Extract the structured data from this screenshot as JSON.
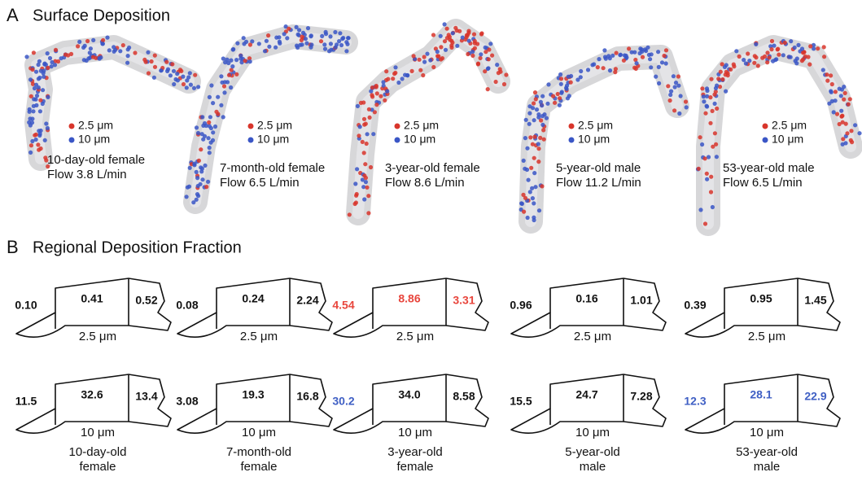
{
  "panel_a": {
    "label": "A",
    "title": "Surface Deposition",
    "dot_colors": [
      "#d8352b",
      "#3a56c6"
    ],
    "subjects": [
      {
        "legend": [
          "2.5 μm",
          "10 μm"
        ],
        "caption": [
          "10-day-old female",
          "Flow 3.8 L/min"
        ]
      },
      {
        "legend": [
          "2.5 μm",
          "10 μm"
        ],
        "caption": [
          "7-month-old female",
          "Flow 6.5 L/min"
        ]
      },
      {
        "legend": [
          "2.5 μm",
          "10 μm"
        ],
        "caption": [
          "3-year-old female",
          "Flow 8.6 L/min"
        ]
      },
      {
        "legend": [
          "2.5 μm",
          "10 μm"
        ],
        "caption": [
          "5-year-old male",
          "Flow 11.2 L/min"
        ]
      },
      {
        "legend": [
          "2.5 μm",
          "10 μm"
        ],
        "caption": [
          "53-year-old male",
          "Flow 6.5 L/min"
        ]
      }
    ]
  },
  "panel_b": {
    "label": "B",
    "title": "Regional Deposition Fraction",
    "columns": [
      {
        "rows": [
          {
            "values": [
              "0.10",
              "0.41",
              "0.52"
            ],
            "colors": [
              "#111111",
              "#111111",
              "#111111"
            ],
            "size": "2.5 μm"
          },
          {
            "values": [
              "11.5",
              "32.6",
              "13.4"
            ],
            "colors": [
              "#111111",
              "#111111",
              "#111111"
            ],
            "size": "10 μm"
          }
        ],
        "subject": [
          "10-day-old",
          "female"
        ]
      },
      {
        "rows": [
          {
            "values": [
              "0.08",
              "0.24",
              "2.24"
            ],
            "colors": [
              "#111111",
              "#111111",
              "#111111"
            ],
            "size": "2.5 μm"
          },
          {
            "values": [
              "3.08",
              "19.3",
              "16.8"
            ],
            "colors": [
              "#111111",
              "#111111",
              "#111111"
            ],
            "size": "10 μm"
          }
        ],
        "subject": [
          "7-month-old",
          "female"
        ]
      },
      {
        "rows": [
          {
            "values": [
              "4.54",
              "8.86",
              "3.31"
            ],
            "colors": [
              "#e8453c",
              "#e8453c",
              "#e8453c"
            ],
            "size": "2.5 μm"
          },
          {
            "values": [
              "30.2",
              "34.0",
              "8.58"
            ],
            "colors": [
              "#3f5fc4",
              "#111111",
              "#111111"
            ],
            "size": "10 μm"
          }
        ],
        "subject": [
          "3-year-old",
          "female"
        ]
      },
      {
        "rows": [
          {
            "values": [
              "0.96",
              "0.16",
              "1.01"
            ],
            "colors": [
              "#111111",
              "#111111",
              "#111111"
            ],
            "size": "2.5 μm"
          },
          {
            "values": [
              "15.5",
              "24.7",
              "7.28"
            ],
            "colors": [
              "#111111",
              "#111111",
              "#111111"
            ],
            "size": "10 μm"
          }
        ],
        "subject": [
          "5-year-old",
          "male"
        ]
      },
      {
        "rows": [
          {
            "values": [
              "0.39",
              "0.95",
              "1.45"
            ],
            "colors": [
              "#111111",
              "#111111",
              "#111111"
            ],
            "size": "2.5 μm"
          },
          {
            "values": [
              "12.3",
              "28.1",
              "22.9"
            ],
            "colors": [
              "#3f5fc4",
              "#3f5fc4",
              "#3f5fc4"
            ],
            "size": "10 μm"
          }
        ],
        "subject": [
          "53-year-old",
          "male"
        ]
      }
    ]
  }
}
